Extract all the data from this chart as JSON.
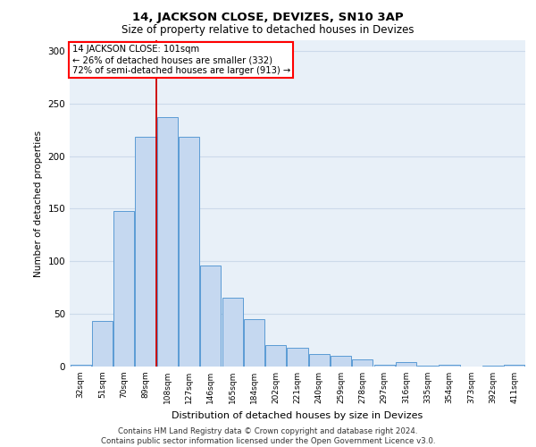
{
  "title1": "14, JACKSON CLOSE, DEVIZES, SN10 3AP",
  "title2": "Size of property relative to detached houses in Devizes",
  "xlabel": "Distribution of detached houses by size in Devizes",
  "ylabel": "Number of detached properties",
  "categories": [
    "32sqm",
    "51sqm",
    "70sqm",
    "89sqm",
    "108sqm",
    "127sqm",
    "146sqm",
    "165sqm",
    "184sqm",
    "202sqm",
    "221sqm",
    "240sqm",
    "259sqm",
    "278sqm",
    "297sqm",
    "316sqm",
    "335sqm",
    "354sqm",
    "373sqm",
    "392sqm",
    "411sqm"
  ],
  "values": [
    2,
    43,
    148,
    218,
    237,
    218,
    96,
    65,
    45,
    20,
    18,
    12,
    10,
    7,
    2,
    4,
    1,
    2,
    0,
    1,
    2
  ],
  "bar_color": "#c5d8f0",
  "bar_edge_color": "#5b9bd5",
  "red_line_x": 3.5,
  "annotation_line1": "14 JACKSON CLOSE: 101sqm",
  "annotation_line2": "← 26% of detached houses are smaller (332)",
  "annotation_line3": "72% of semi-detached houses are larger (913) →",
  "annotation_box_color": "white",
  "annotation_box_edge_color": "red",
  "red_line_color": "#cc0000",
  "grid_color": "#ccdaea",
  "background_color": "#e8f0f8",
  "footer_line1": "Contains HM Land Registry data © Crown copyright and database right 2024.",
  "footer_line2": "Contains public sector information licensed under the Open Government Licence v3.0.",
  "ylim": [
    0,
    310
  ],
  "yticks": [
    0,
    50,
    100,
    150,
    200,
    250,
    300
  ]
}
